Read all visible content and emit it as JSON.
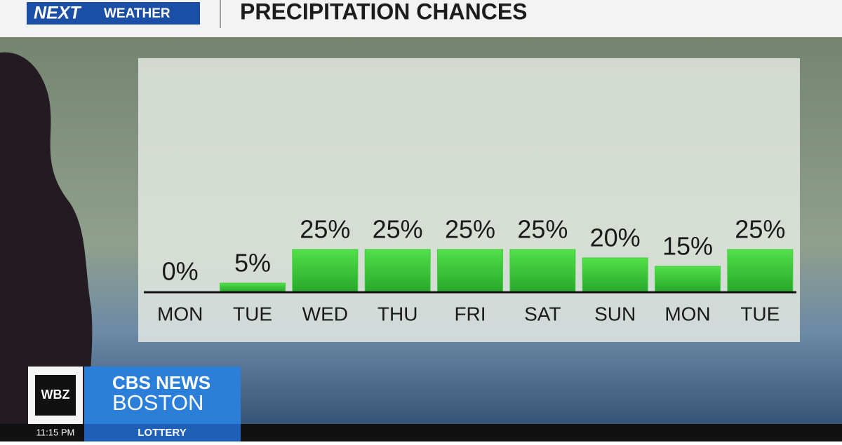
{
  "header": {
    "brand": "NEXT",
    "brand_sub": "WEATHER"
  },
  "chart_data": {
    "type": "bar",
    "title": "PRECIPITATION CHANCES",
    "categories": [
      "MON",
      "TUE",
      "WED",
      "THU",
      "FRI",
      "SAT",
      "SUN",
      "MON",
      "TUE"
    ],
    "values": [
      0,
      5,
      25,
      25,
      25,
      25,
      20,
      15,
      25
    ],
    "value_labels": [
      "0%",
      "5%",
      "25%",
      "25%",
      "25%",
      "25%",
      "20%",
      "15%",
      "25%"
    ],
    "color": "#3fcf3a"
  },
  "footer": {
    "station": "WBZ",
    "network": "CBS NEWS",
    "city": "BOSTON",
    "time": "11:15 PM",
    "ticker": "LOTTERY"
  }
}
